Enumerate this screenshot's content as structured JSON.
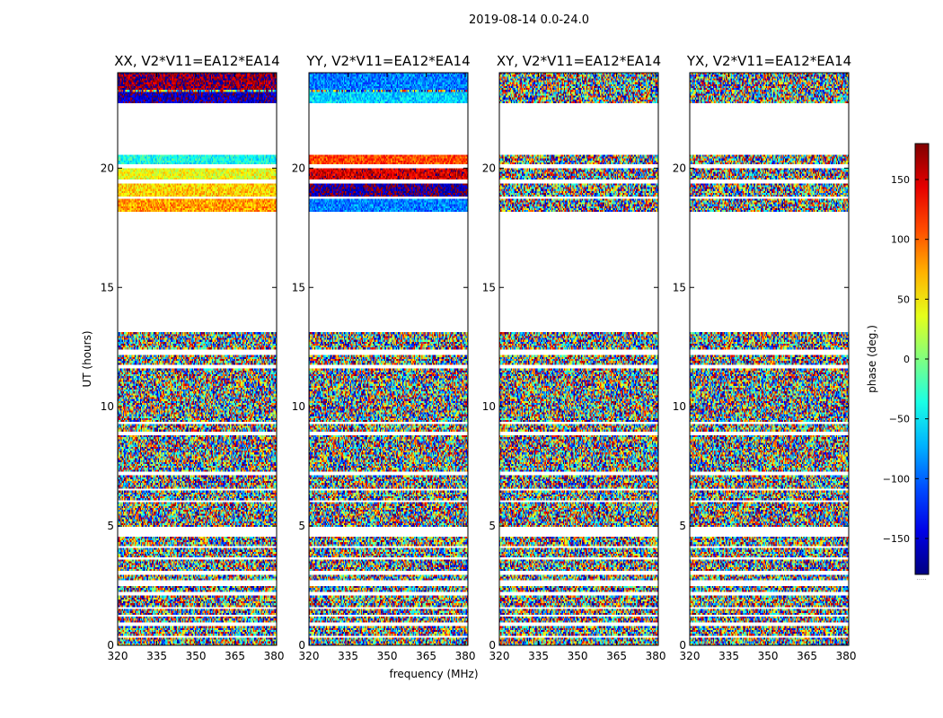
{
  "figure": {
    "suptitle": "2019-08-14 0.0-24.0"
  },
  "chart_data": {
    "type": "heatmap",
    "description_axes": {
      "ylabel": "UT (hours)",
      "xlabel": "frequency (MHz)",
      "ylim": [
        0,
        24
      ],
      "xlim": [
        320,
        381
      ],
      "yticks": [
        0,
        5,
        10,
        15,
        20
      ],
      "xticks": [
        320,
        335,
        350,
        365,
        380
      ]
    },
    "colorbar": {
      "label": "phase (deg.)",
      "range": [
        -180,
        180
      ],
      "ticks": [
        -150,
        -100,
        -50,
        0,
        50,
        100,
        150
      ],
      "tick_labels": [
        "−150",
        "−100",
        "−50",
        "0",
        "50",
        "100",
        "150"
      ],
      "colormap": "jet",
      "extra_label": "....."
    },
    "panels": [
      {
        "title": "XX, V2*V11=EA12*EA14",
        "pol": "XX"
      },
      {
        "title": "YY, V2*V11=EA12*EA14",
        "pol": "YY"
      },
      {
        "title": "XY, V2*V11=EA12*EA14",
        "pol": "XY"
      },
      {
        "title": "YX, V2*V11=EA12*EA14",
        "pol": "YX"
      }
    ],
    "data_bands_hours": [
      [
        0.0,
        0.3
      ],
      [
        0.4,
        0.8
      ],
      [
        1.0,
        1.2
      ],
      [
        1.3,
        1.5
      ],
      [
        1.6,
        2.1
      ],
      [
        2.2,
        2.5
      ],
      [
        2.7,
        3.0
      ],
      [
        3.1,
        3.6
      ],
      [
        3.7,
        4.1
      ],
      [
        4.2,
        4.6
      ],
      [
        5.0,
        6.0
      ],
      [
        6.1,
        6.5
      ],
      [
        6.6,
        7.1
      ],
      [
        7.3,
        8.8
      ],
      [
        9.0,
        9.3
      ],
      [
        9.4,
        11.6
      ],
      [
        11.8,
        12.2
      ],
      [
        12.4,
        13.1
      ],
      [
        18.2,
        18.7
      ],
      [
        18.8,
        19.4
      ],
      [
        19.5,
        20.0
      ],
      [
        20.2,
        20.6
      ],
      [
        22.7,
        24.0
      ]
    ],
    "coherent_phase_deg": {
      "XX": [
        {
          "band": [
            18.2,
            18.7
          ],
          "phase_deg": 80
        },
        {
          "band": [
            18.8,
            19.4
          ],
          "phase_deg": 60
        },
        {
          "band": [
            19.5,
            20.0
          ],
          "phase_deg": 40
        },
        {
          "band": [
            20.2,
            20.6
          ],
          "phase_deg": -40
        },
        {
          "band": [
            22.7,
            23.2
          ],
          "phase_deg": -160
        },
        {
          "band": [
            23.3,
            24.0
          ],
          "phase_deg": 170
        }
      ],
      "YY": [
        {
          "band": [
            18.2,
            18.7
          ],
          "phase_deg": -90
        },
        {
          "band": [
            18.8,
            19.4
          ],
          "phase_deg": -170
        },
        {
          "band": [
            19.5,
            20.0
          ],
          "phase_deg": 150
        },
        {
          "band": [
            20.2,
            20.6
          ],
          "phase_deg": 110
        },
        {
          "band": [
            22.7,
            23.2
          ],
          "phase_deg": -60
        },
        {
          "band": [
            23.3,
            24.0
          ],
          "phase_deg": -90
        }
      ]
    },
    "noise_note": "outside coherent bands, phases are random across -180..180"
  }
}
